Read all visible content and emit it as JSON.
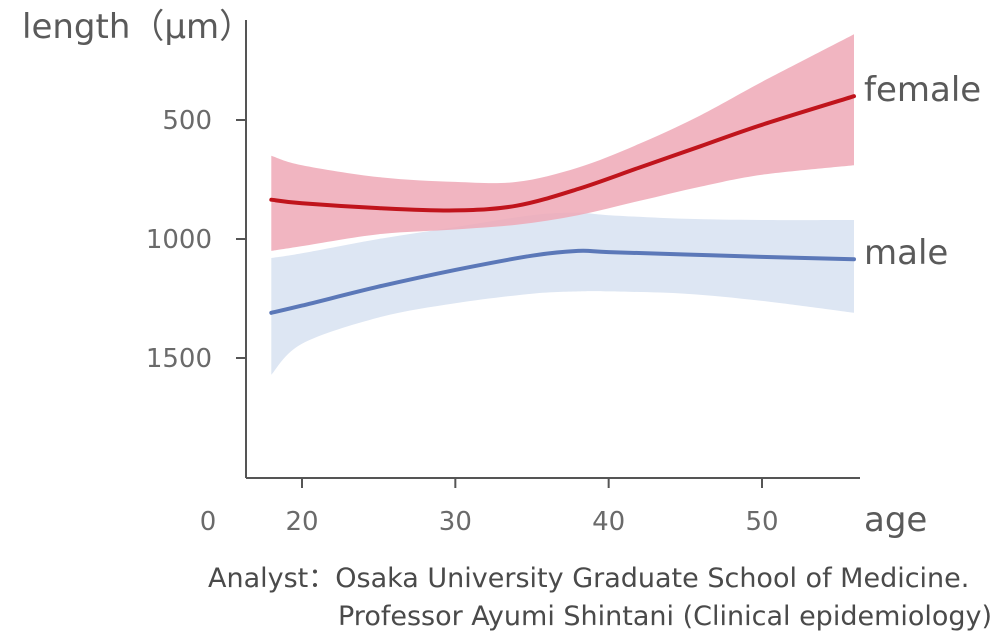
{
  "chart_data": {
    "type": "line",
    "ylabel": "length（μm）",
    "xlabel": "age",
    "x_origin_label": "0",
    "xlim": [
      0,
      60
    ],
    "ylim": [
      0,
      2000
    ],
    "xticks": [
      20,
      30,
      40,
      50
    ],
    "yticks": [
      500,
      1000,
      1500
    ],
    "grid": false,
    "legend": "inline-right",
    "series": [
      {
        "name": "male",
        "color": "#5b78b8",
        "band_color": "#dde6f3",
        "x": [
          18,
          20,
          25,
          30,
          35,
          38,
          40,
          45,
          50,
          56
        ],
        "y": [
          1310,
          1280,
          1200,
          1130,
          1070,
          1050,
          1055,
          1065,
          1075,
          1085
        ],
        "upper": [
          1570,
          1440,
          1330,
          1270,
          1230,
          1220,
          1220,
          1230,
          1260,
          1310
        ],
        "lower": [
          1080,
          1060,
          1000,
          950,
          900,
          890,
          900,
          915,
          920,
          920
        ]
      },
      {
        "name": "female",
        "color": "#c0141c",
        "band_color": "#eea8b6",
        "x": [
          18,
          20,
          25,
          30,
          34,
          38,
          42,
          46,
          50,
          56
        ],
        "y": [
          835,
          850,
          870,
          880,
          860,
          790,
          700,
          610,
          520,
          400
        ],
        "upper": [
          1050,
          1030,
          980,
          960,
          940,
          900,
          840,
          780,
          730,
          690
        ],
        "lower": [
          650,
          690,
          740,
          760,
          760,
          700,
          600,
          480,
          340,
          140
        ]
      }
    ]
  },
  "credits": {
    "line1": "Analyst：Osaka University Graduate School of Medicine.",
    "line2": "Professor Ayumi Shintani (Clinical epidemiology)"
  }
}
